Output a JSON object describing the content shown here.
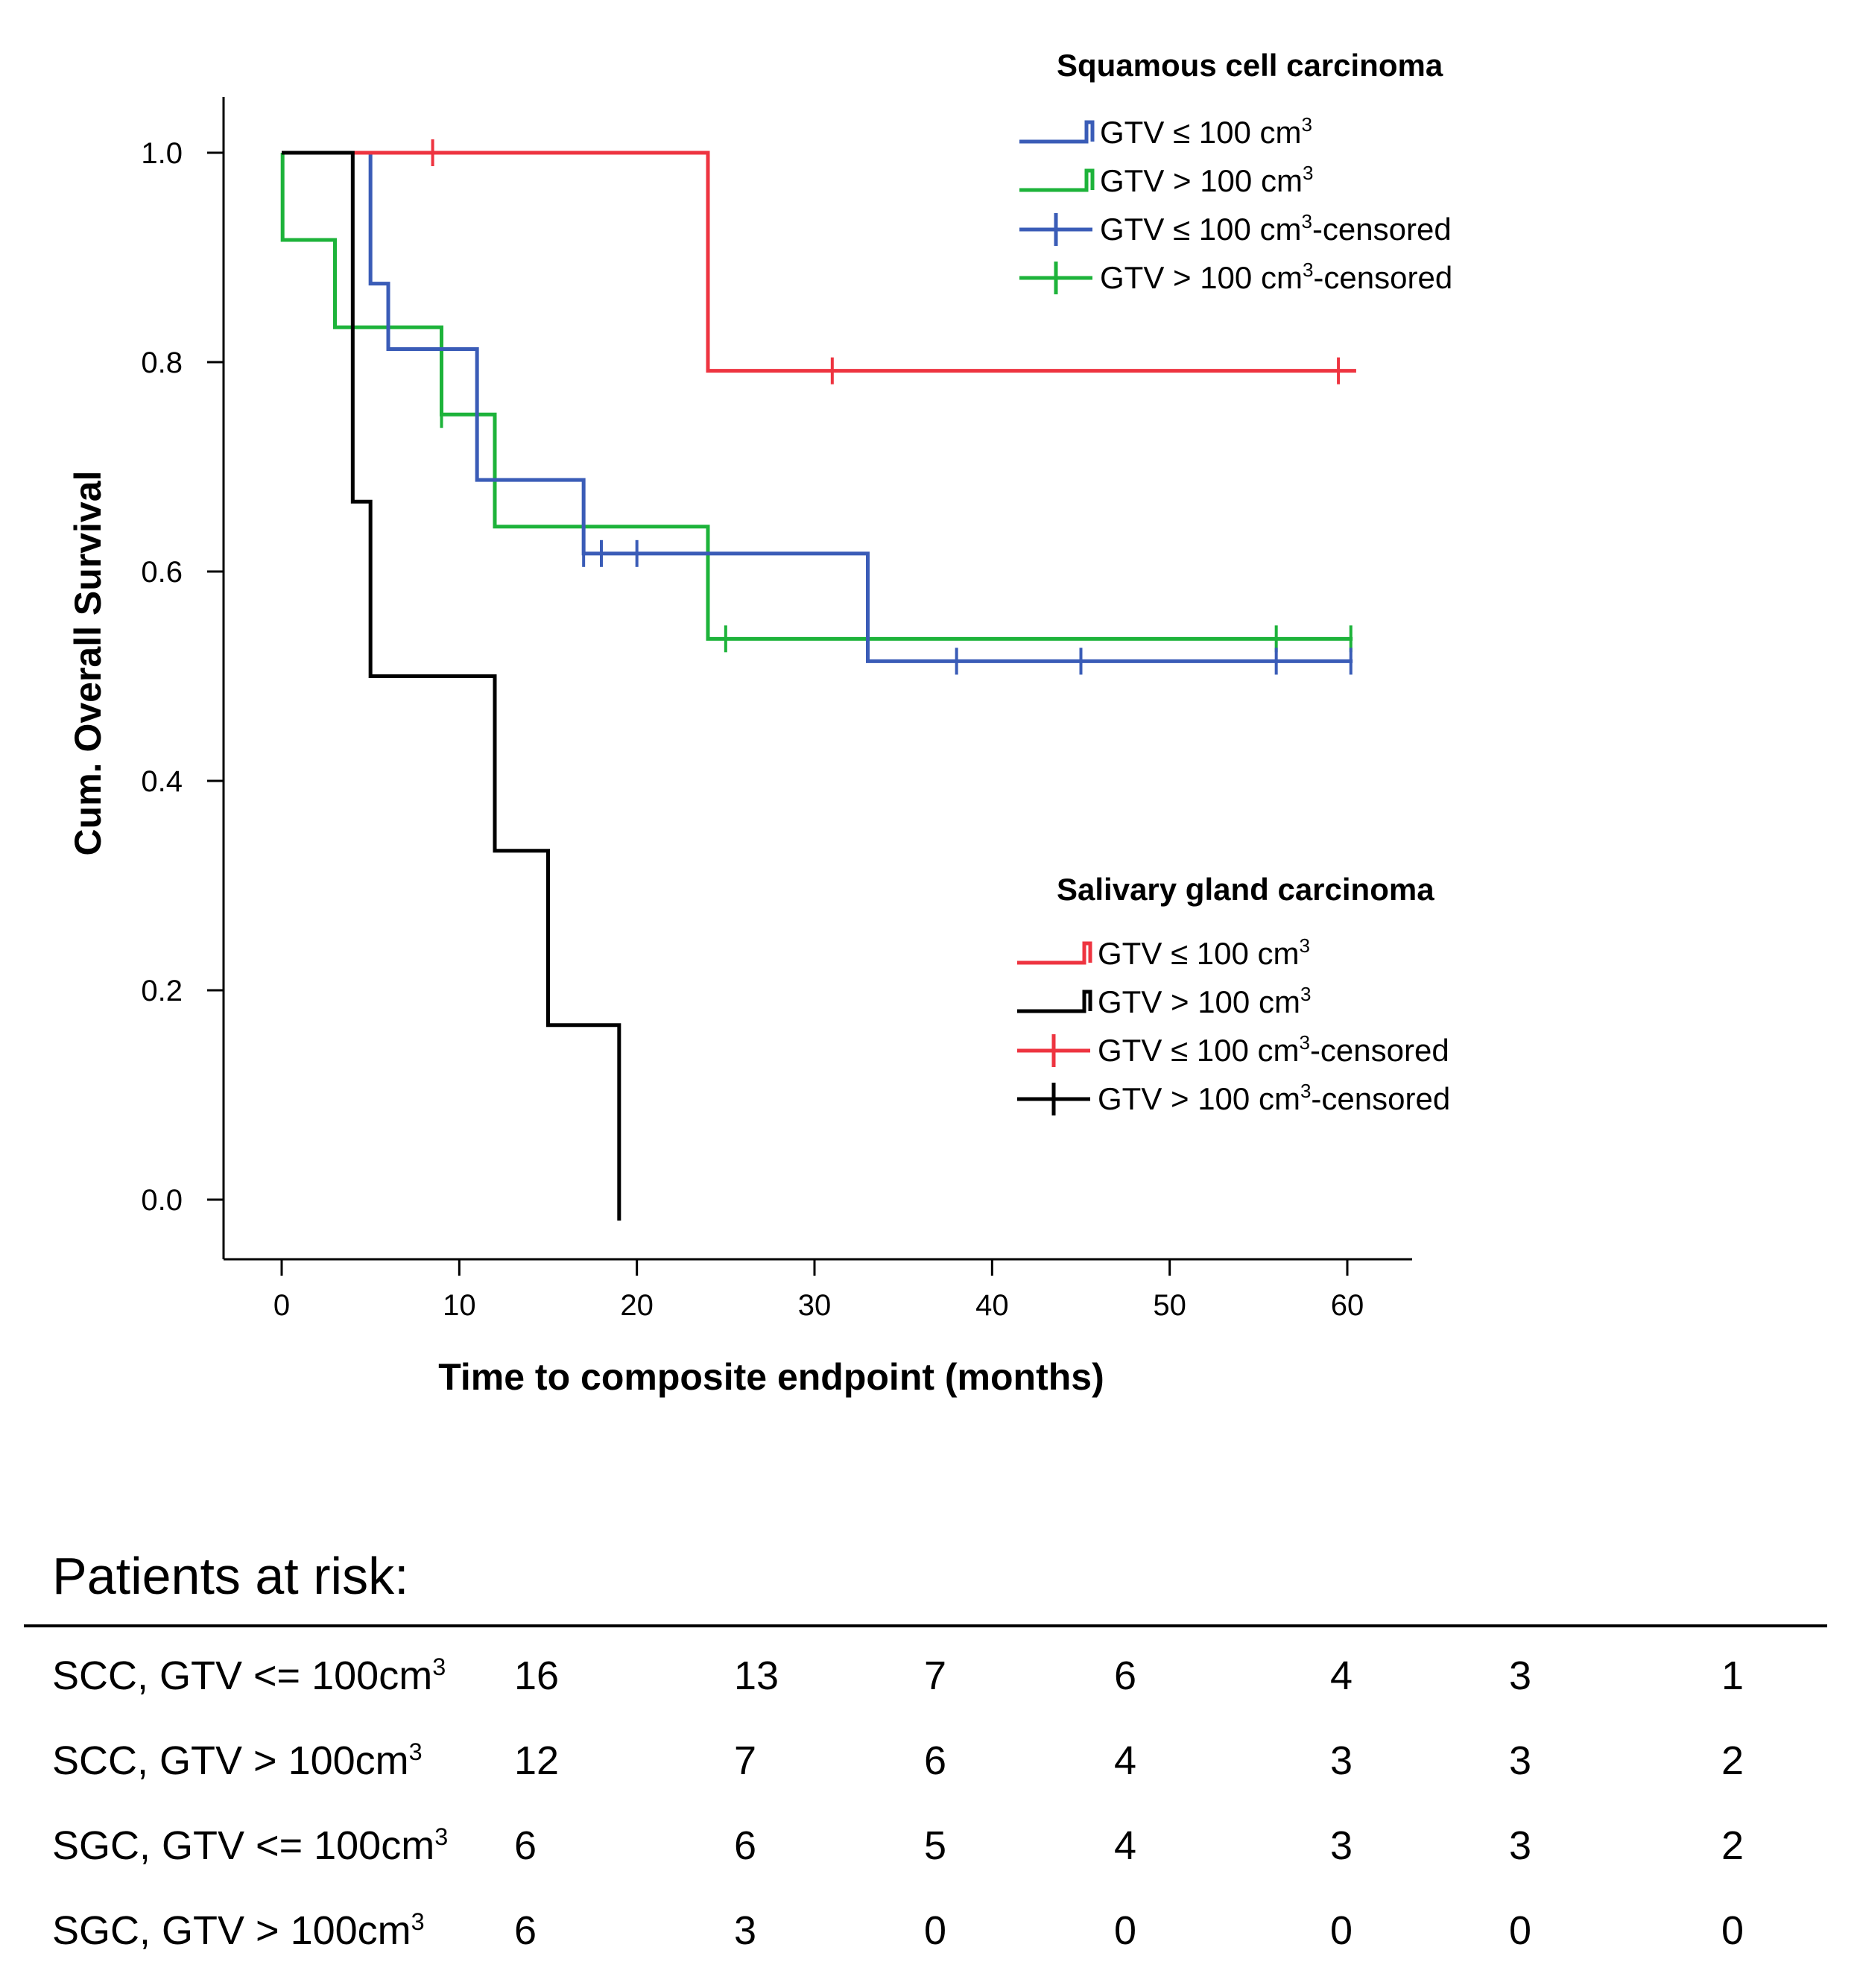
{
  "chart_data": {
    "type": "line",
    "subtype": "kaplan-meier step",
    "xlabel": "Time to composite endpoint (months)",
    "ylabel": "Cum. Overall Survival",
    "xlim": [
      -3,
      63
    ],
    "ylim": [
      -0.02,
      1.02
    ],
    "xticks": [
      "0",
      "10",
      "20",
      "30",
      "40",
      "50",
      "60"
    ],
    "yticks": [
      "0.0",
      "0.2",
      "0.4",
      "0.6",
      "0.8",
      "1.0"
    ],
    "series": [
      {
        "name": "SCC GTV ≤ 100 cm3",
        "color": "#3a5cb7",
        "steps": [
          [
            0,
            1.0
          ],
          [
            5,
            0.875
          ],
          [
            6,
            0.8125
          ],
          [
            11,
            0.6875
          ],
          [
            17,
            0.6172
          ],
          [
            33,
            0.5143
          ],
          [
            60.3,
            0.5143
          ]
        ],
        "censored": [
          [
            17,
            0.6172
          ],
          [
            18,
            0.6172
          ],
          [
            20,
            0.6172
          ],
          [
            38,
            0.5143
          ],
          [
            45,
            0.5143
          ],
          [
            56,
            0.5143
          ],
          [
            60.2,
            0.5143
          ]
        ]
      },
      {
        "name": "SCC GTV > 100 cm3",
        "color": "#1db33a",
        "steps": [
          [
            0,
            1.0
          ],
          [
            0.05,
            0.9167
          ],
          [
            3,
            0.8333
          ],
          [
            9,
            0.75
          ],
          [
            12,
            0.6429
          ],
          [
            24,
            0.5357
          ],
          [
            60.3,
            0.5357
          ]
        ],
        "censored": [
          [
            9,
            0.75
          ],
          [
            25,
            0.5357
          ],
          [
            56,
            0.5357
          ],
          [
            60.2,
            0.5357
          ]
        ]
      },
      {
        "name": "SGC GTV ≤ 100 cm3",
        "color": "#ee3440",
        "steps": [
          [
            0,
            1.0
          ],
          [
            24,
            0.7917
          ],
          [
            60.5,
            0.7917
          ]
        ],
        "censored": [
          [
            8.5,
            1.0
          ],
          [
            31,
            0.7917
          ],
          [
            59.5,
            0.7917
          ]
        ]
      },
      {
        "name": "SGC GTV > 100 cm3",
        "color": "#000000",
        "steps": [
          [
            0,
            1.0
          ],
          [
            4,
            0.6667
          ],
          [
            5,
            0.5
          ],
          [
            12,
            0.3333
          ],
          [
            15,
            0.1667
          ],
          [
            19,
            -0.02
          ]
        ],
        "censored": []
      }
    ],
    "legends": [
      {
        "title": "Squamous cell carcinoma",
        "entries": [
          {
            "text": "GTV ≤ 100 cm",
            "sup": "3",
            "suffix": "",
            "color": "#3a5cb7",
            "kind": "step"
          },
          {
            "text": "GTV > 100 cm",
            "sup": "3",
            "suffix": "",
            "color": "#1db33a",
            "kind": "step"
          },
          {
            "text": "GTV ≤ 100 cm",
            "sup": "3",
            "suffix": "-censored",
            "color": "#3a5cb7",
            "kind": "censor"
          },
          {
            "text": "GTV > 100 cm",
            "sup": "3",
            "suffix": "-censored",
            "color": "#1db33a",
            "kind": "censor"
          }
        ]
      },
      {
        "title": "Salivary gland carcinoma",
        "entries": [
          {
            "text": "GTV ≤ 100 cm",
            "sup": "3",
            "suffix": "",
            "color": "#ee3440",
            "kind": "step"
          },
          {
            "text": "GTV > 100 cm",
            "sup": "3",
            "suffix": "",
            "color": "#000000",
            "kind": "step"
          },
          {
            "text": "GTV ≤ 100 cm",
            "sup": "3",
            "suffix": "-censored",
            "color": "#ee3440",
            "kind": "censor"
          },
          {
            "text": "GTV > 100 cm",
            "sup": "3",
            "suffix": "-censored",
            "color": "#000000",
            "kind": "censor"
          }
        ]
      }
    ]
  },
  "risk_table": {
    "title": "Patients at risk:",
    "rows": [
      {
        "label": "SCC, GTV <= 100cm",
        "sup": "3",
        "values": [
          "16",
          "13",
          "7",
          "6",
          "4",
          "3",
          "1"
        ]
      },
      {
        "label": "SCC, GTV  > 100cm",
        "sup": "3",
        "values": [
          "12",
          "7",
          "6",
          "4",
          "3",
          "3",
          "2"
        ]
      },
      {
        "label": "SGC, GTV <= 100cm",
        "sup": "3",
        "values": [
          "6",
          "6",
          "5",
          "4",
          "3",
          "3",
          "2"
        ]
      },
      {
        "label": "SGC, GTV  > 100cm",
        "sup": "3",
        "values": [
          "6",
          "3",
          "0",
          "0",
          "0",
          "0",
          "0"
        ]
      }
    ]
  }
}
